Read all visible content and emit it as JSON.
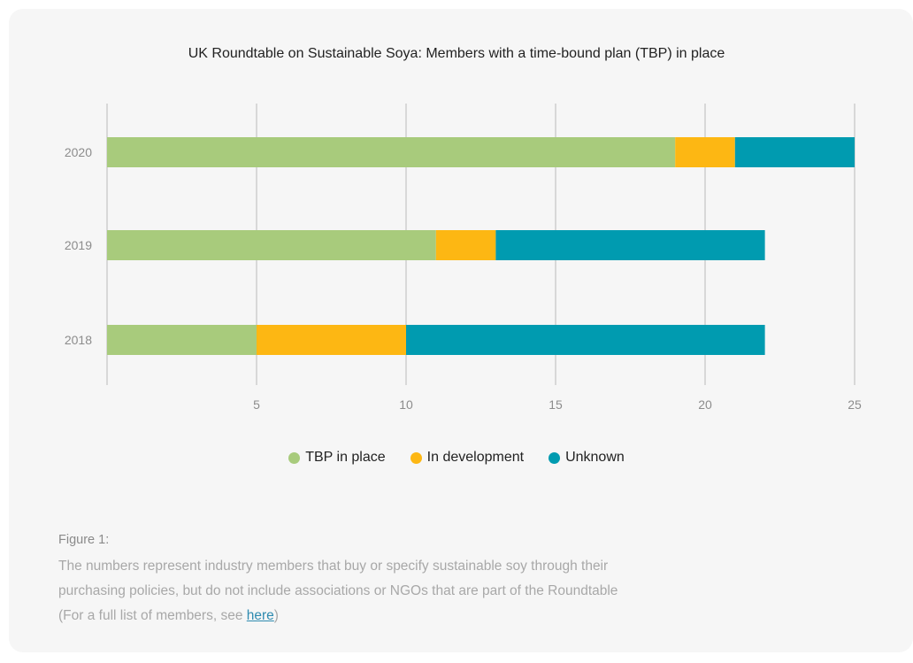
{
  "chart_data": {
    "type": "bar",
    "orientation": "horizontal",
    "stacked": true,
    "title": "UK Roundtable on Sustainable Soya: Members with a time-bound plan (TBP) in place",
    "categories": [
      "2020",
      "2019",
      "2018"
    ],
    "series": [
      {
        "name": "TBP in place",
        "color": "#a8cb7c",
        "values": [
          19,
          11,
          5
        ]
      },
      {
        "name": "In development",
        "color": "#fdb713",
        "values": [
          2,
          2,
          5
        ]
      },
      {
        "name": "Unknown",
        "color": "#009bb0",
        "values": [
          4,
          9,
          12
        ]
      }
    ],
    "xlim": [
      0,
      25
    ],
    "xticks": [
      5,
      10,
      15,
      20,
      25
    ],
    "grid": true,
    "legend_position": "bottom-center"
  },
  "caption": {
    "label": "Figure 1:",
    "line1": "The numbers represent industry members that buy or specify sustainable soy through their",
    "line2": "purchasing policies, but do not include associations or NGOs that are part of the Roundtable",
    "line3_prefix": "(For a full list of members, see ",
    "link_text": "here",
    "line3_suffix": ")"
  }
}
